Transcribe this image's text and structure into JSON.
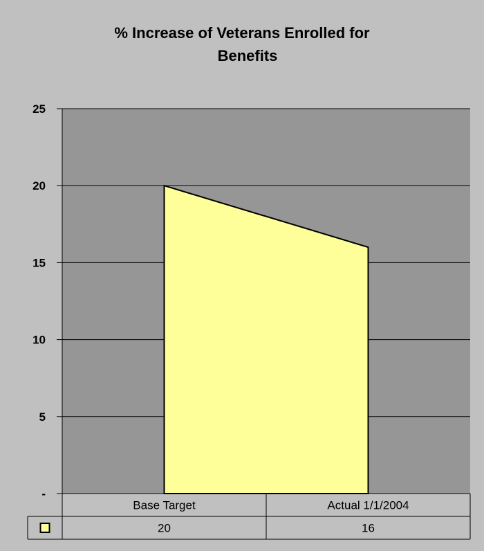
{
  "chart_data": {
    "type": "area",
    "title_lines": [
      "% Increase of Veterans Enrolled for",
      "Benefits"
    ],
    "categories": [
      "Base Target",
      "Actual 1/1/2004"
    ],
    "series": [
      {
        "values": [
          20,
          16
        ]
      }
    ],
    "ylim": [
      0,
      25
    ],
    "y_ticks": [
      0,
      5,
      10,
      15,
      20,
      25
    ],
    "y_tick_labels": [
      "-",
      "5",
      "10",
      "15",
      "20",
      "25"
    ],
    "grid": true,
    "legend": "data-table-left",
    "data_table": true,
    "xlabel": "",
    "ylabel": ""
  },
  "colors": {
    "outer_background": "#c0c0c0",
    "plot_background": "#969696",
    "series_fill": "#ffff99",
    "series_stroke": "#000000",
    "gridline": "#000000"
  }
}
